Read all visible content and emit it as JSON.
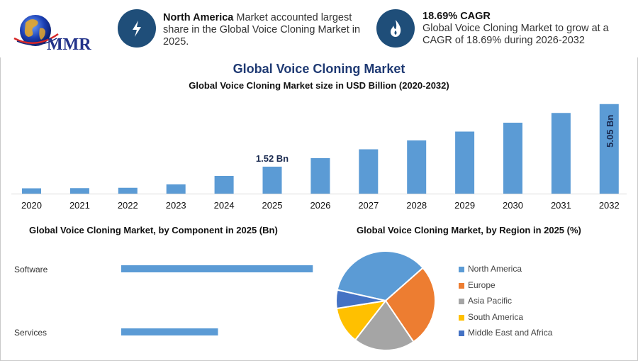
{
  "header": {
    "logo": {
      "text": "MMR"
    },
    "highlight1": {
      "bold": "North America",
      "text": " Market accounted largest share in the Global Voice Cloning Market in 2025."
    },
    "highlight2": {
      "bold": "18.69% CAGR",
      "text": "Global Voice Cloning Market to grow at a CAGR of 18.69% during 2026-2032"
    }
  },
  "title": "Global Voice Cloning Market",
  "subtitle": "Global Voice Cloning Market size in USD Billion (2020-2032)",
  "colors": {
    "bar": "#5b9bd5",
    "badge": "#1f4e79",
    "title": "#1f3a73"
  },
  "chart_data": [
    {
      "type": "bar",
      "title": "Global Voice Cloning Market size in USD Billion (2020-2032)",
      "categories": [
        "2020",
        "2021",
        "2022",
        "2023",
        "2024",
        "2025",
        "2026",
        "2027",
        "2028",
        "2029",
        "2030",
        "2031",
        "2032"
      ],
      "values": [
        0.3,
        0.31,
        0.33,
        0.52,
        1.0,
        1.52,
        2.0,
        2.5,
        3.0,
        3.5,
        4.0,
        4.55,
        5.05
      ],
      "data_labels": {
        "5": "1.52 Bn",
        "12": "5.05 Bn"
      },
      "ylim": [
        0,
        5.2
      ],
      "xlabel": "",
      "ylabel": "",
      "grid": false
    },
    {
      "type": "bar",
      "orientation": "horizontal",
      "title": "Global Voice Cloning Market, by Component in 2025 (Bn)",
      "categories": [
        "Software",
        "Services"
      ],
      "values": [
        0.99,
        0.5
      ],
      "xlim": [
        0,
        1.0
      ]
    },
    {
      "type": "pie",
      "title": "Global Voice Cloning Market, by Region in 2025 (%)",
      "labels": [
        "North America",
        "Europe",
        "Asia Pacific",
        "South America",
        "Middle East and Africa"
      ],
      "values": [
        35,
        27,
        20,
        12,
        6
      ],
      "colors": [
        "#5b9bd5",
        "#ed7d31",
        "#a5a5a5",
        "#ffc000",
        "#4472c4"
      ],
      "legend": "right"
    }
  ]
}
